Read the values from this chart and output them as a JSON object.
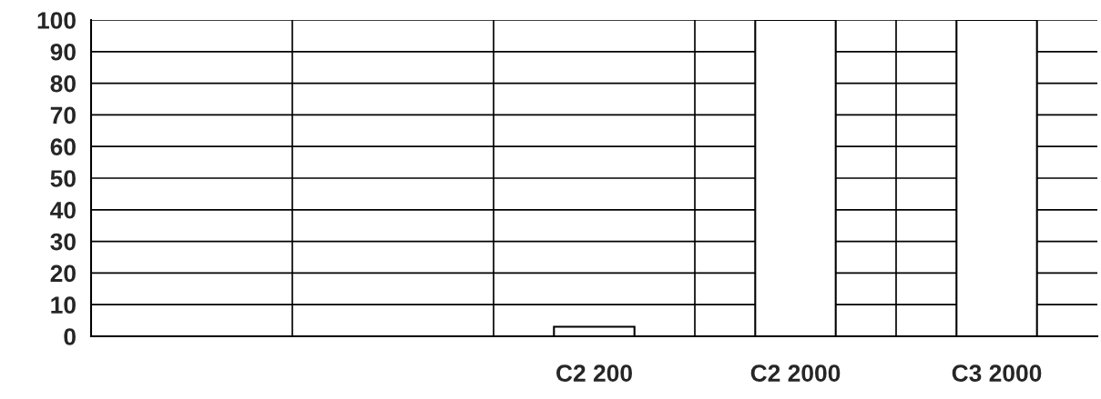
{
  "chart_data": {
    "type": "bar",
    "categories": [
      null,
      null,
      "C2 200",
      "C2 2000",
      "C3 2000"
    ],
    "values": [
      null,
      null,
      3,
      100,
      100
    ],
    "color": "#ffffff",
    "ylim": [
      0,
      100
    ],
    "yticks": [
      0,
      10,
      20,
      30,
      40,
      50,
      60,
      70,
      80,
      90,
      100
    ],
    "grid": true
  }
}
